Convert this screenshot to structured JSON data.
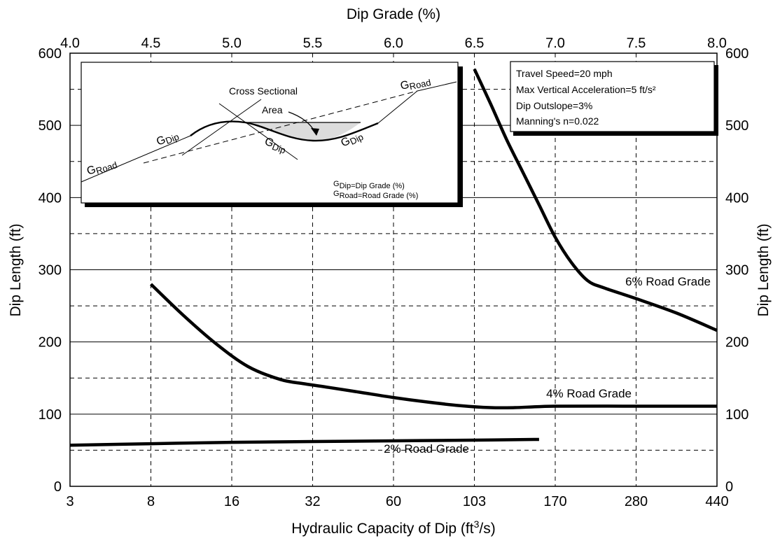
{
  "chart_data": {
    "type": "line",
    "title": "",
    "top_axis": {
      "label": "Dip Grade (%)",
      "range": [
        4.0,
        8.0
      ],
      "ticks": [
        "4.0",
        "4.5",
        "5.0",
        "5.5",
        "6.0",
        "6.5",
        "7.0",
        "7.5",
        "8.0"
      ]
    },
    "bottom_axis": {
      "label": "Hydraulic Capacity of Dip (ft³/s)",
      "ticks": [
        "3",
        "8",
        "16",
        "32",
        "60",
        "103",
        "170",
        "280",
        "440"
      ]
    },
    "left_axis": {
      "label": "Dip Length (ft)",
      "range": [
        0,
        600
      ],
      "ticks": [
        "0",
        "100",
        "200",
        "300",
        "400",
        "500",
        "600"
      ]
    },
    "right_axis": {
      "label": "Dip Length (ft)",
      "range": [
        0,
        600
      ],
      "ticks": [
        "0",
        "100",
        "200",
        "300",
        "400",
        "500",
        "600"
      ]
    },
    "grid": true,
    "series": [
      {
        "name": "2% Road Grade",
        "x_dip_grade": [
          4.0,
          4.5,
          5.0,
          5.5,
          6.0,
          6.5,
          6.9
        ],
        "y": [
          57,
          59,
          61,
          62,
          63,
          64,
          65
        ]
      },
      {
        "name": "4% Road Grade",
        "x_dip_grade": [
          4.5,
          4.7,
          4.9,
          5.1,
          5.3,
          5.45,
          5.6,
          5.8,
          6.0,
          6.2,
          6.4,
          6.6,
          6.75,
          7.0,
          7.5,
          8.0
        ],
        "y": [
          280,
          237,
          198,
          166,
          148,
          142,
          137,
          130,
          123,
          117,
          112,
          109,
          109,
          111,
          111,
          111
        ]
      },
      {
        "name": "6% Road Grade",
        "x_dip_grade": [
          6.5,
          6.6,
          6.7,
          6.8,
          6.9,
          7.0,
          7.1,
          7.2,
          7.3,
          7.5,
          7.75,
          8.0
        ],
        "y": [
          578,
          530,
          480,
          435,
          390,
          345,
          310,
          285,
          275,
          260,
          240,
          216
        ]
      }
    ],
    "legend": {
      "lines": [
        "Travel Speed=20 mph",
        "Max Vertical Acceleration=5 ft/s²",
        "Dip Outslope=3%",
        "Manning's n=0.022"
      ]
    },
    "inset": {
      "cross_section_label": "Cross Sectional",
      "area_label": "Area",
      "g_prefix": "G",
      "dip_sub": "Dip",
      "road_sub": "Road",
      "def_dip": "=Dip Grade (%)",
      "def_road": "=Road Grade (%)"
    }
  }
}
